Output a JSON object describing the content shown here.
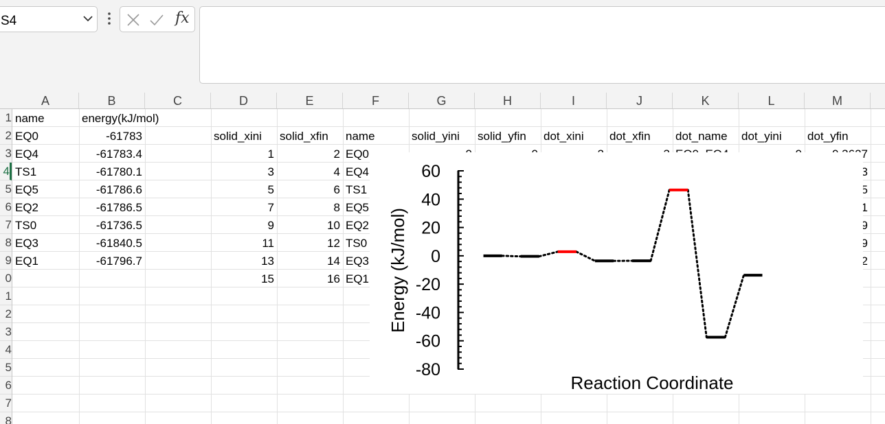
{
  "name_box": {
    "value": "S4"
  },
  "formula_bar": {
    "fx_label": "fx",
    "value": ""
  },
  "columns": [
    "A",
    "B",
    "C",
    "D",
    "E",
    "F",
    "G",
    "H",
    "I",
    "J",
    "K",
    "L",
    "M"
  ],
  "rows": [
    "1",
    "2",
    "3",
    "4",
    "5",
    "6",
    "7",
    "8",
    "9",
    "0",
    "1",
    "2",
    "3",
    "4",
    "5",
    "6",
    "7",
    "8"
  ],
  "table": {
    "header_row1": {
      "A": "name",
      "B": "energy(kJ/mol)"
    },
    "header_row2": {
      "D": "solid_xini",
      "E": "solid_xfin",
      "F": "name",
      "G": "solid_yini",
      "H": "solid_yfin",
      "I": "dot_xini",
      "J": "dot_xfin",
      "K": "dot_name",
      "L": "dot_yini",
      "M": "dot_yfin"
    },
    "row2_AB": {
      "A": "EQ0",
      "B": "-61783"
    },
    "data_rows": [
      {
        "A": "EQ4",
        "B": "-61783.4",
        "D": "1",
        "E": "2",
        "F": "EQ0",
        "G": "0",
        "H": "0",
        "I": "2",
        "J": "3",
        "K": "EQ0_EQ4",
        "L": "0",
        "M": "-0.3627"
      },
      {
        "A": "TS1",
        "B": "-61780.1",
        "D": "3",
        "E": "4",
        "F": "EQ4",
        "M": "3"
      },
      {
        "A": "EQ5",
        "B": "-61786.6",
        "D": "5",
        "E": "6",
        "F": "TS1",
        "M": "5"
      },
      {
        "A": "EQ2",
        "B": "-61786.5",
        "D": "7",
        "E": "8",
        "F": "EQ5",
        "M": "1"
      },
      {
        "A": "TS0",
        "B": "-61736.5",
        "D": "9",
        "E": "10",
        "F": "EQ2",
        "M": "9"
      },
      {
        "A": "EQ3",
        "B": "-61840.5",
        "D": "11",
        "E": "12",
        "F": "TS0",
        "M": "9"
      },
      {
        "A": "EQ1",
        "B": "-61796.7",
        "D": "13",
        "E": "14",
        "F": "EQ3",
        "M": "2"
      },
      {
        "D": "15",
        "E": "16",
        "F": "EQ1"
      }
    ]
  },
  "chart_data": {
    "type": "line",
    "title": "",
    "xlabel": "Reaction Coordinate",
    "ylabel": "Energy (kJ/mol)",
    "ylim": [
      -80,
      60
    ],
    "yticks": [
      "60",
      "40",
      "20",
      "0",
      "-20",
      "-40",
      "-60",
      "-80"
    ],
    "xlim": [
      0.5,
      16.5
    ],
    "levels": [
      {
        "name": "EQ0",
        "x": [
          1,
          2
        ],
        "y": 0,
        "color": "#000000"
      },
      {
        "name": "EQ4",
        "x": [
          3,
          4
        ],
        "y": -0.4,
        "color": "#000000"
      },
      {
        "name": "TS1",
        "x": [
          5,
          6
        ],
        "y": 2.9,
        "color": "#ff0000"
      },
      {
        "name": "EQ5",
        "x": [
          7,
          8
        ],
        "y": -3.6,
        "color": "#000000"
      },
      {
        "name": "EQ2",
        "x": [
          9,
          10
        ],
        "y": -3.5,
        "color": "#000000"
      },
      {
        "name": "TS0",
        "x": [
          11,
          12
        ],
        "y": 46.5,
        "color": "#ff0000"
      },
      {
        "name": "EQ3",
        "x": [
          13,
          14
        ],
        "y": -57.5,
        "color": "#000000"
      },
      {
        "name": "EQ1",
        "x": [
          15,
          16
        ],
        "y": -13.7,
        "color": "#000000"
      }
    ]
  }
}
